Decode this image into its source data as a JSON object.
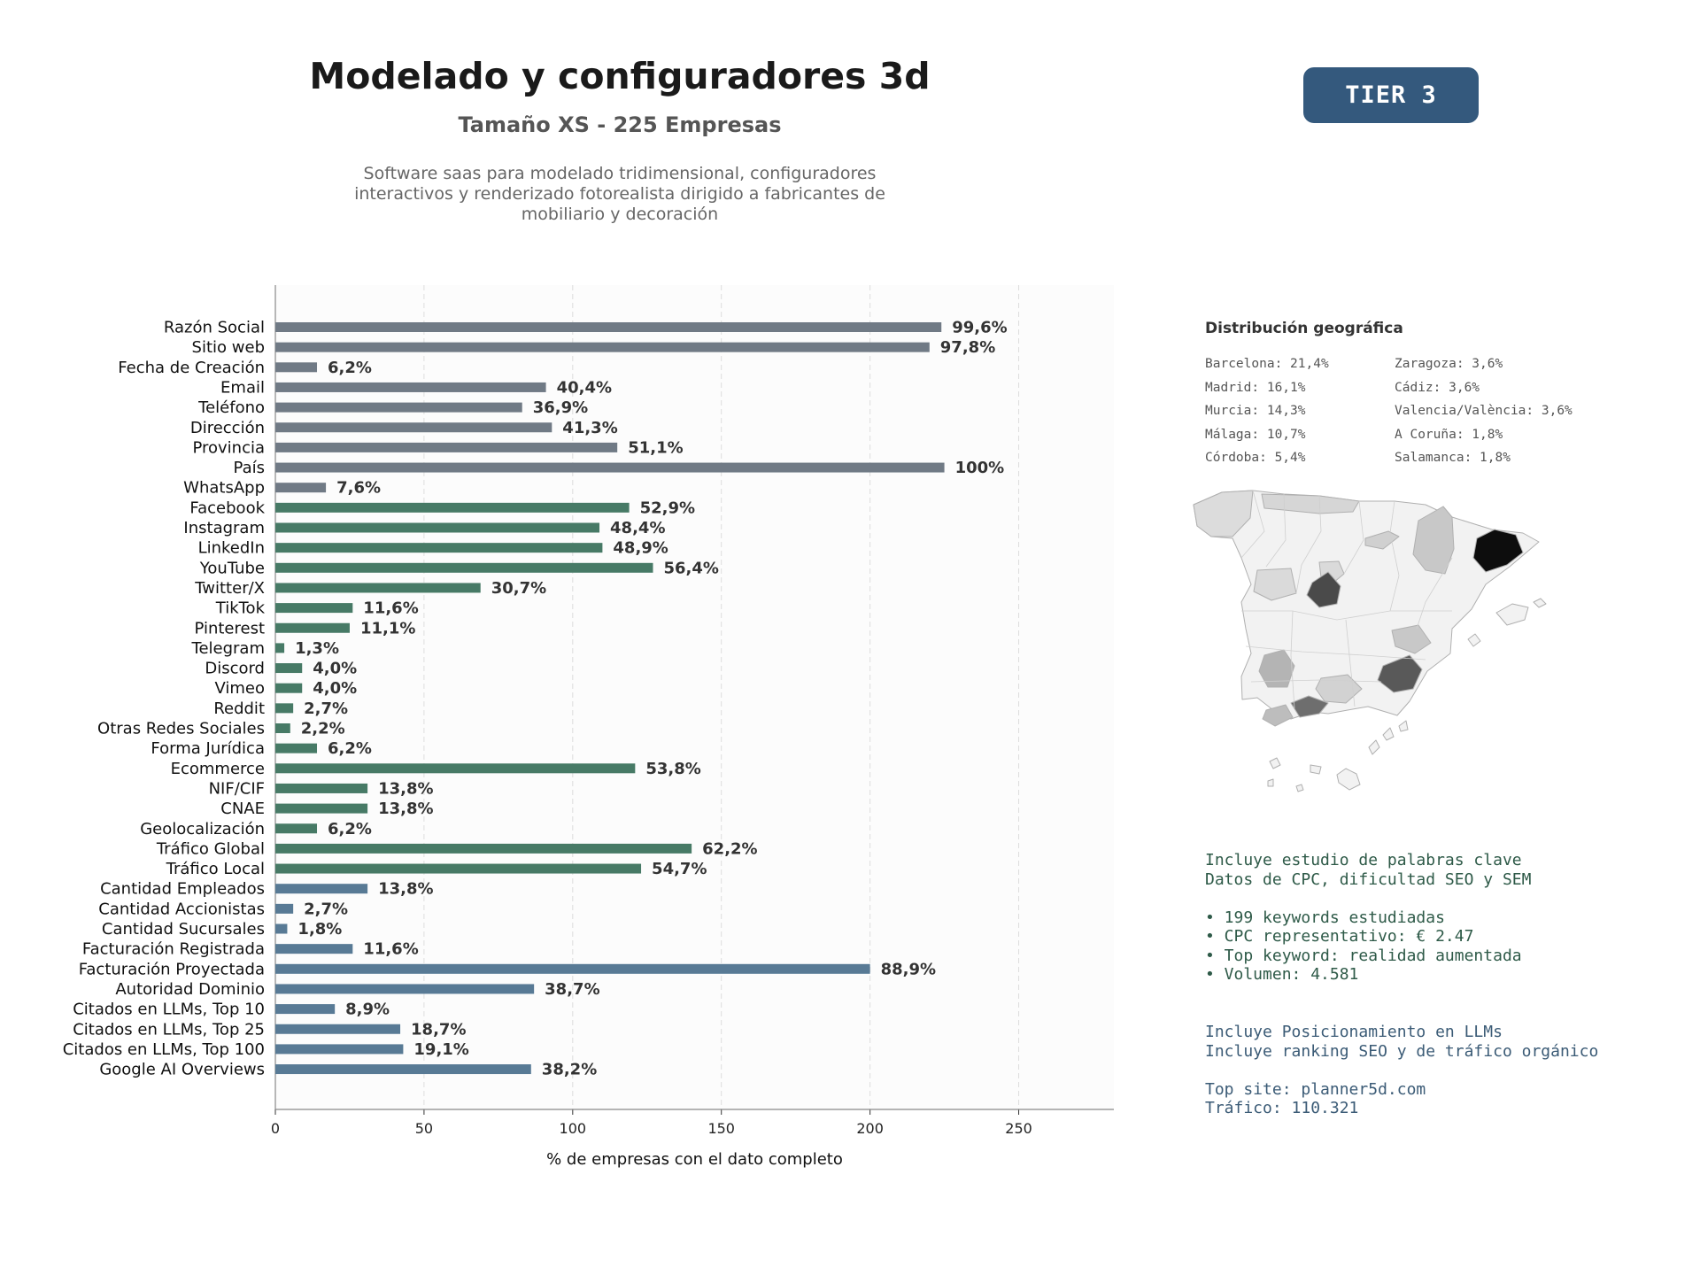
{
  "header": {
    "title": "Modelado y configuradores 3d",
    "subtitle": "Tamaño XS - 225 Empresas",
    "description_lines": [
      "Software saas para modelado tridimensional, configuradores",
      "interactivos y renderizado fotorealista dirigido a fabricantes de",
      "mobiliario y decoración"
    ],
    "tier_label": "TIER 3"
  },
  "colors": {
    "gray": "#707a85",
    "green": "#477a66",
    "blue": "#587a95",
    "tier_badge": "#34597d",
    "seo_text": "#2e5a48",
    "llm_text": "#3b5b76"
  },
  "chart_data": {
    "type": "bar",
    "orientation": "horizontal",
    "title": "",
    "xlabel": "% de empresas con el dato completo",
    "ylabel": "",
    "xlim": [
      0,
      282
    ],
    "xticks": [
      0,
      50,
      100,
      150,
      200,
      250
    ],
    "grid": "vertical dashed",
    "categories": [
      "Razón Social",
      "Sitio web",
      "Fecha de Creación",
      "Email",
      "Teléfono",
      "Dirección",
      "Provincia",
      "País",
      "WhatsApp",
      "Facebook",
      "Instagram",
      "LinkedIn",
      "YouTube",
      "Twitter/X",
      "TikTok",
      "Pinterest",
      "Telegram",
      "Discord",
      "Vimeo",
      "Reddit",
      "Otras Redes Sociales",
      "Forma Jurídica",
      "Ecommerce",
      "NIF/CIF",
      "CNAE",
      "Geolocalización",
      "Tráfico Global",
      "Tráfico Local",
      "Cantidad Empleados",
      "Cantidad Accionistas",
      "Cantidad Sucursales",
      "Facturación Registrada",
      "Facturación Proyectada",
      "Autoridad Dominio",
      "Citados en LLMs, Top 10",
      "Citados en LLMs, Top 25",
      "Citados en LLMs, Top 100",
      "Google AI Overviews"
    ],
    "values": [
      224,
      220,
      14,
      91,
      83,
      93,
      115,
      225,
      17,
      119,
      109,
      110,
      127,
      69,
      26,
      25,
      3,
      9,
      9,
      6,
      5,
      14,
      121,
      31,
      31,
      14,
      140,
      123,
      31,
      6,
      4,
      26,
      200,
      87,
      20,
      42,
      43,
      86
    ],
    "labels": [
      "99,6%",
      "97,8%",
      "6,2%",
      "40,4%",
      "36,9%",
      "41,3%",
      "51,1%",
      "100%",
      "7,6%",
      "52,9%",
      "48,4%",
      "48,9%",
      "56,4%",
      "30,7%",
      "11,6%",
      "11,1%",
      "1,3%",
      "4,0%",
      "4,0%",
      "2,7%",
      "2,2%",
      "6,2%",
      "53,8%",
      "13,8%",
      "13,8%",
      "6,2%",
      "62,2%",
      "54,7%",
      "13,8%",
      "2,7%",
      "1,8%",
      "11,6%",
      "88,9%",
      "38,7%",
      "8,9%",
      "18,7%",
      "19,1%",
      "38,2%"
    ],
    "bar_colors": [
      "gray",
      "gray",
      "gray",
      "gray",
      "gray",
      "gray",
      "gray",
      "gray",
      "gray",
      "green",
      "green",
      "green",
      "green",
      "green",
      "green",
      "green",
      "green",
      "green",
      "green",
      "green",
      "green",
      "green",
      "green",
      "green",
      "green",
      "green",
      "green",
      "green",
      "blue",
      "blue",
      "blue",
      "blue",
      "blue",
      "blue",
      "blue",
      "blue",
      "blue",
      "blue"
    ]
  },
  "geo": {
    "title": "Distribución geográfica",
    "col1": [
      "Barcelona: 21,4%",
      "Madrid: 16,1%",
      "Murcia: 14,3%",
      "Málaga: 10,7%",
      "Córdoba: 5,4%"
    ],
    "col2": [
      "Zaragoza: 3,6%",
      "Cádiz: 3,6%",
      "Valencia/València: 3,6%",
      "A Coruña: 1,8%",
      "Salamanca: 1,8%"
    ]
  },
  "seo": {
    "lines": [
      "Incluye estudio de palabras clave",
      "Datos de CPC, dificultad SEO y SEM"
    ],
    "bullets": [
      "• 199 keywords estudiadas",
      "• CPC representativo: € 2.47",
      "• Top keyword: realidad aumentada",
      "• Volumen: 4.581"
    ]
  },
  "llm": {
    "lines": [
      "Incluye Posicionamiento en LLMs",
      "Incluye ranking SEO y de tráfico orgánico"
    ],
    "site_lines": [
      "Top site: planner5d.com",
      "Tráfico: 110.321"
    ]
  }
}
